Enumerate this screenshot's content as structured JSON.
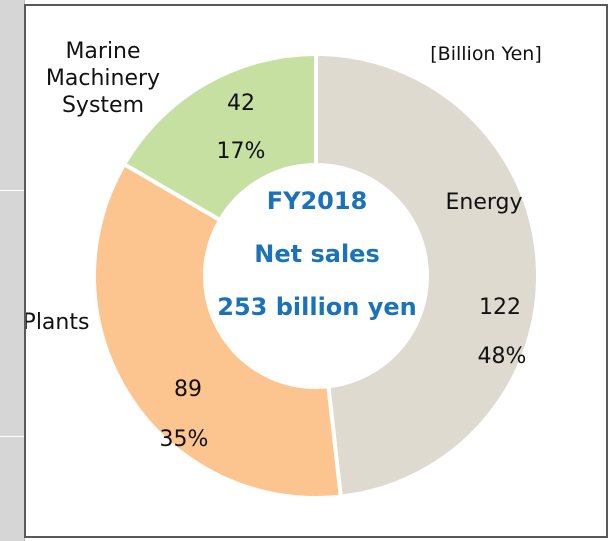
{
  "chart_data": {
    "type": "pie",
    "variant": "donut",
    "unit_note": "[Billion Yen]",
    "center_text": {
      "line1": "FY2018",
      "line2": "Net sales",
      "line3": "253 billion yen"
    },
    "total": 253,
    "slices": [
      {
        "label": "Energy",
        "value": 122,
        "value_label": "122",
        "percent_label": "48%",
        "color": "#dedad0"
      },
      {
        "label": "Plants",
        "value": 89,
        "value_label": "89",
        "percent_label": "35%",
        "color": "#fcc590"
      },
      {
        "label_lines": [
          "Marine",
          "Machinery",
          "System"
        ],
        "value": 42,
        "value_label": "42",
        "percent_label": "17%",
        "color": "#c6e0a2"
      }
    ]
  },
  "colors": {
    "center_text": "#1a73b8",
    "text": "#111111",
    "separator": "#ffffff"
  }
}
